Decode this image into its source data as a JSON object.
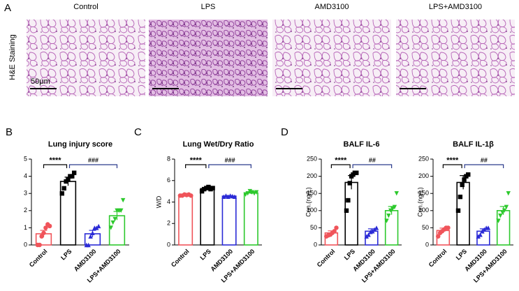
{
  "figure": {
    "label": "A",
    "stain": "H&E Staining",
    "images": [
      "Control",
      "LPS",
      "AMD3100",
      "LPS+AMD3100"
    ],
    "scale_bar": "50μm"
  },
  "chart_data": [
    {
      "label": "B",
      "type": "bar",
      "title": "Lung injury score",
      "categories": [
        "Control",
        "LPS",
        "AMD3100",
        "LPS+AMD3100"
      ],
      "colors": [
        "#f0545a",
        "#000000",
        "#2b2bd6",
        "#2dc92d"
      ],
      "values": [
        0.65,
        3.7,
        0.65,
        1.7
      ],
      "errors": [
        0.2,
        0.25,
        0.2,
        0.25
      ],
      "points": [
        [
          0,
          0,
          0.5,
          0.7,
          1,
          1.2,
          1.1
        ],
        [
          3,
          3.3,
          3.7,
          3.8,
          4,
          4,
          4.2
        ],
        [
          0,
          0,
          0.5,
          0.7,
          1,
          1,
          1.1
        ],
        [
          1,
          1.3,
          1.5,
          2,
          2,
          2,
          2.6
        ]
      ],
      "ylim": [
        0,
        5
      ],
      "yticks": [
        0,
        1,
        2,
        3,
        4,
        5
      ],
      "significance": [
        "****",
        "###"
      ]
    },
    {
      "label": "C",
      "type": "bar",
      "title": "Lung Wet/Dry Ratio",
      "ylabel": "W/D",
      "categories": [
        "Control",
        "LPS",
        "AMD3100",
        "LPS+AMD3100"
      ],
      "colors": [
        "#f0545a",
        "#000000",
        "#2b2bd6",
        "#2dc92d"
      ],
      "values": [
        4.65,
        5.25,
        4.55,
        4.85
      ],
      "errors": [
        0.05,
        0.1,
        0.05,
        0.1
      ],
      "points": [
        [
          4.6,
          4.6,
          4.7,
          4.65,
          4.7,
          4.6
        ],
        [
          5.0,
          5.2,
          5.3,
          5.4,
          5.2,
          5.3
        ],
        [
          4.5,
          4.6,
          4.5,
          4.6,
          4.55,
          4.5
        ],
        [
          4.7,
          4.8,
          5.0,
          4.9,
          4.8,
          4.9
        ]
      ],
      "ylim": [
        0,
        8
      ],
      "yticks": [
        0,
        2,
        4,
        6,
        8
      ],
      "significance": [
        "****",
        "###"
      ]
    },
    {
      "label": "D",
      "type": "bar",
      "title": "BALF IL-6",
      "ylabel": "Con.(ng/L)",
      "categories": [
        "Control",
        "LPS",
        "AMD3100",
        "LPS+AMD3100"
      ],
      "colors": [
        "#f0545a",
        "#000000",
        "#2b2bd6",
        "#2dc92d"
      ],
      "values": [
        35,
        182,
        40,
        100
      ],
      "errors": [
        6,
        20,
        7,
        12
      ],
      "points": [
        [
          25,
          28,
          30,
          35,
          40,
          50
        ],
        [
          100,
          130,
          180,
          200,
          205,
          210,
          210
        ],
        [
          25,
          30,
          38,
          40,
          45,
          50
        ],
        [
          70,
          85,
          100,
          105,
          110,
          150
        ]
      ],
      "ylim": [
        0,
        250
      ],
      "yticks": [
        0,
        50,
        100,
        150,
        200,
        250
      ],
      "significance": [
        "****",
        "##"
      ]
    },
    {
      "type": "bar",
      "title": "BALF IL-1β",
      "ylabel": "Con.(ng/L)",
      "categories": [
        "Control",
        "LPS",
        "AMD3100",
        "LPS+AMD3100"
      ],
      "colors": [
        "#f0545a",
        "#000000",
        "#2b2bd6",
        "#2dc92d"
      ],
      "values": [
        42,
        182,
        40,
        100
      ],
      "errors": [
        7,
        20,
        7,
        12
      ],
      "points": [
        [
          25,
          35,
          40,
          45,
          50,
          50
        ],
        [
          100,
          140,
          175,
          190,
          200,
          205
        ],
        [
          25,
          30,
          40,
          45,
          50,
          50
        ],
        [
          70,
          85,
          95,
          100,
          110,
          150
        ]
      ],
      "ylim": [
        0,
        250
      ],
      "yticks": [
        0,
        50,
        100,
        150,
        200,
        250
      ],
      "significance": [
        "****",
        "##"
      ]
    }
  ]
}
